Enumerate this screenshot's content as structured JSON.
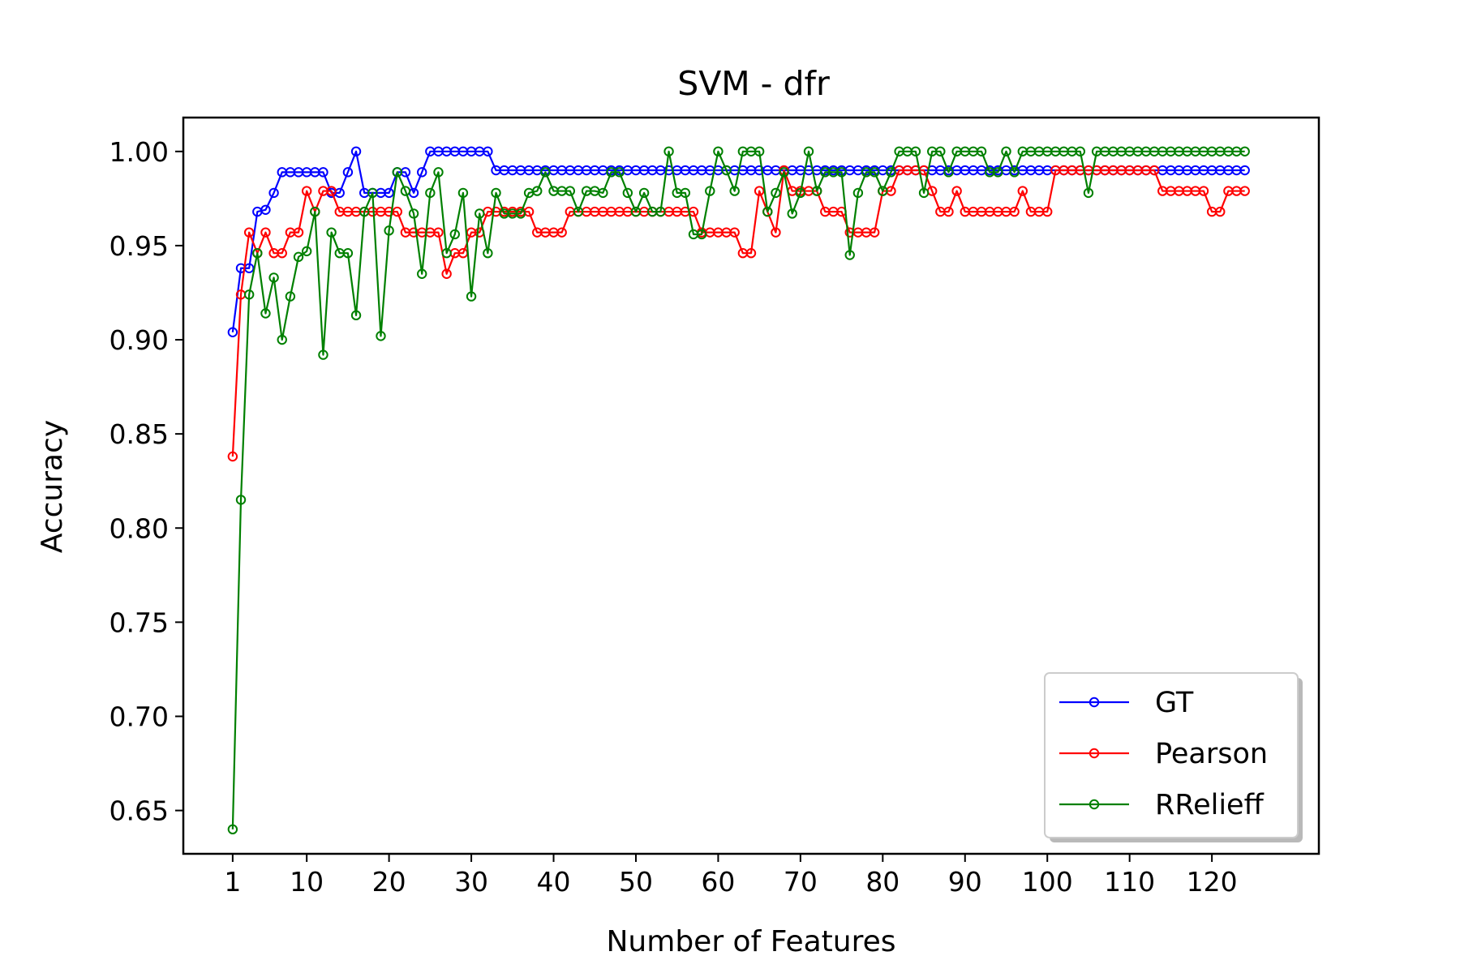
{
  "chart_data": {
    "type": "line",
    "title": "SVM - dfr",
    "xlabel": "Number of Features",
    "ylabel": "Accuracy",
    "xlim": [
      -5,
      133
    ],
    "ylim": [
      0.627,
      1.018
    ],
    "xticks": [
      1,
      10,
      20,
      30,
      40,
      50,
      60,
      70,
      80,
      90,
      100,
      110,
      120
    ],
    "xtick_labels": [
      "1",
      "10",
      "20",
      "30",
      "40",
      "50",
      "60",
      "70",
      "80",
      "90",
      "100",
      "110",
      "120"
    ],
    "yticks": [
      0.65,
      0.7,
      0.75,
      0.8,
      0.85,
      0.9,
      0.95,
      1.0
    ],
    "ytick_labels": [
      "0.65",
      "0.70",
      "0.75",
      "0.80",
      "0.85",
      "0.90",
      "0.95",
      "1.00"
    ],
    "grid": false,
    "legend_position": "lower-right",
    "x": [
      1,
      2,
      3,
      4,
      5,
      6,
      7,
      8,
      9,
      10,
      11,
      12,
      13,
      14,
      15,
      16,
      17,
      18,
      19,
      20,
      21,
      22,
      23,
      24,
      25,
      26,
      27,
      28,
      29,
      30,
      31,
      32,
      33,
      34,
      35,
      36,
      37,
      38,
      39,
      40,
      41,
      42,
      43,
      44,
      45,
      46,
      47,
      48,
      49,
      50,
      51,
      52,
      53,
      54,
      55,
      56,
      57,
      58,
      59,
      60,
      61,
      62,
      63,
      64,
      65,
      66,
      67,
      68,
      69,
      70,
      71,
      72,
      73,
      74,
      75,
      76,
      77,
      78,
      79,
      80,
      81,
      82,
      83,
      84,
      85,
      86,
      87,
      88,
      89,
      90,
      91,
      92,
      93,
      94,
      95,
      96,
      97,
      98,
      99,
      100,
      101,
      102,
      103,
      104,
      105,
      106,
      107,
      108,
      109,
      110,
      111,
      112,
      113,
      114,
      115,
      116,
      117,
      118,
      119,
      120,
      121,
      122,
      123,
      124
    ],
    "series": [
      {
        "name": "GT",
        "color": "#0000ff",
        "values": [
          0.904,
          0.938,
          0.938,
          0.968,
          0.969,
          0.978,
          0.989,
          0.989,
          0.989,
          0.989,
          0.989,
          0.989,
          0.978,
          0.978,
          0.989,
          1.0,
          0.978,
          0.978,
          0.978,
          0.978,
          0.989,
          0.989,
          0.978,
          0.989,
          1.0,
          1.0,
          1.0,
          1.0,
          1.0,
          1.0,
          1.0,
          1.0,
          0.99,
          0.99,
          0.99,
          0.99,
          0.99,
          0.99,
          0.99,
          0.99,
          0.99,
          0.99,
          0.99,
          0.99,
          0.99,
          0.99,
          0.99,
          0.99,
          0.99,
          0.99,
          0.99,
          0.99,
          0.99,
          0.99,
          0.99,
          0.99,
          0.99,
          0.99,
          0.99,
          0.99,
          0.99,
          0.99,
          0.99,
          0.99,
          0.99,
          0.99,
          0.99,
          0.99,
          0.99,
          0.99,
          0.99,
          0.99,
          0.99,
          0.99,
          0.99,
          0.99,
          0.99,
          0.99,
          0.99,
          0.99,
          0.99,
          0.99,
          0.99,
          0.99,
          0.99,
          0.99,
          0.99,
          0.99,
          0.99,
          0.99,
          0.99,
          0.99,
          0.99,
          0.99,
          0.99,
          0.99,
          0.99,
          0.99,
          0.99,
          0.99,
          0.99,
          0.99,
          0.99,
          0.99,
          0.99,
          0.99,
          0.99,
          0.99,
          0.99,
          0.99,
          0.99,
          0.99,
          0.99,
          0.99,
          0.99,
          0.99,
          0.99,
          0.99,
          0.99,
          0.99,
          0.99,
          0.99,
          0.99,
          0.99
        ]
      },
      {
        "name": "Pearson",
        "color": "#ff0000",
        "values": [
          0.838,
          0.924,
          0.957,
          0.946,
          0.957,
          0.946,
          0.946,
          0.957,
          0.957,
          0.979,
          0.968,
          0.979,
          0.979,
          0.968,
          0.968,
          0.968,
          0.968,
          0.968,
          0.968,
          0.968,
          0.968,
          0.957,
          0.957,
          0.957,
          0.957,
          0.957,
          0.935,
          0.946,
          0.946,
          0.957,
          0.957,
          0.968,
          0.968,
          0.968,
          0.968,
          0.968,
          0.968,
          0.957,
          0.957,
          0.957,
          0.957,
          0.968,
          0.968,
          0.968,
          0.968,
          0.968,
          0.968,
          0.968,
          0.968,
          0.968,
          0.968,
          0.968,
          0.968,
          0.968,
          0.968,
          0.968,
          0.968,
          0.957,
          0.957,
          0.957,
          0.957,
          0.957,
          0.946,
          0.946,
          0.979,
          0.968,
          0.957,
          0.99,
          0.979,
          0.979,
          0.979,
          0.979,
          0.968,
          0.968,
          0.968,
          0.957,
          0.957,
          0.957,
          0.957,
          0.979,
          0.979,
          0.99,
          0.99,
          0.99,
          0.99,
          0.979,
          0.968,
          0.968,
          0.979,
          0.968,
          0.968,
          0.968,
          0.968,
          0.968,
          0.968,
          0.968,
          0.979,
          0.968,
          0.968,
          0.968,
          0.99,
          0.99,
          0.99,
          0.99,
          0.99,
          0.99,
          0.99,
          0.99,
          0.99,
          0.99,
          0.99,
          0.99,
          0.99,
          0.979,
          0.979,
          0.979,
          0.979,
          0.979,
          0.979,
          0.968,
          0.968,
          0.979,
          0.979,
          0.979
        ]
      },
      {
        "name": "RRelieff",
        "color": "#008000",
        "values": [
          0.64,
          0.815,
          0.924,
          0.946,
          0.914,
          0.933,
          0.9,
          0.923,
          0.944,
          0.947,
          0.968,
          0.892,
          0.957,
          0.946,
          0.946,
          0.913,
          0.968,
          0.978,
          0.902,
          0.958,
          0.989,
          0.979,
          0.967,
          0.935,
          0.978,
          0.989,
          0.946,
          0.956,
          0.978,
          0.923,
          0.967,
          0.946,
          0.978,
          0.967,
          0.967,
          0.967,
          0.978,
          0.979,
          0.989,
          0.979,
          0.979,
          0.979,
          0.968,
          0.979,
          0.979,
          0.978,
          0.989,
          0.989,
          0.978,
          0.968,
          0.978,
          0.968,
          0.968,
          1.0,
          0.978,
          0.978,
          0.956,
          0.956,
          0.979,
          1.0,
          0.99,
          0.979,
          1.0,
          1.0,
          1.0,
          0.968,
          0.978,
          0.989,
          0.967,
          0.978,
          1.0,
          0.979,
          0.989,
          0.989,
          0.989,
          0.945,
          0.978,
          0.989,
          0.989,
          0.979,
          0.989,
          1.0,
          1.0,
          1.0,
          0.978,
          1.0,
          1.0,
          0.989,
          1.0,
          1.0,
          1.0,
          1.0,
          0.989,
          0.989,
          1.0,
          0.989,
          1.0,
          1.0,
          1.0,
          1.0,
          1.0,
          1.0,
          1.0,
          1.0,
          0.978,
          1.0,
          1.0,
          1.0,
          1.0,
          1.0,
          1.0,
          1.0,
          1.0,
          1.0,
          1.0,
          1.0,
          1.0,
          1.0,
          1.0,
          1.0,
          1.0,
          1.0,
          1.0,
          1.0
        ]
      }
    ]
  }
}
